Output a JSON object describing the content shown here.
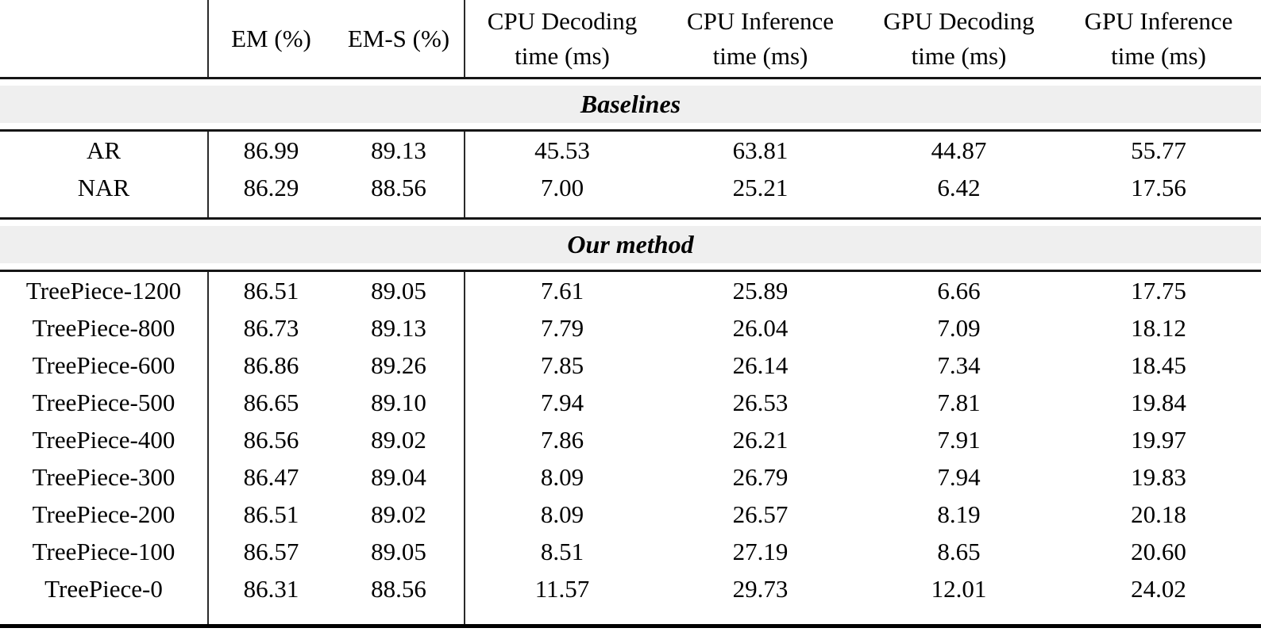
{
  "table": {
    "columns": [
      {
        "line1": "",
        "line2": ""
      },
      {
        "line1": "EM (%)",
        "line2": ""
      },
      {
        "line1": "EM-S (%)",
        "line2": ""
      },
      {
        "line1": "CPU Decoding",
        "line2": "time (ms)"
      },
      {
        "line1": "CPU Inference",
        "line2": "time (ms)"
      },
      {
        "line1": "GPU Decoding",
        "line2": "time (ms)"
      },
      {
        "line1": "GPU Inference",
        "line2": "time (ms)"
      }
    ],
    "sections": [
      {
        "title": "Baselines",
        "rows": [
          {
            "label": "AR",
            "label_bold": false,
            "cells": [
              {
                "v": "86.99",
                "b": true
              },
              {
                "v": "89.13",
                "b": false
              },
              {
                "v": "45.53",
                "b": false
              },
              {
                "v": "63.81",
                "b": false
              },
              {
                "v": "44.87",
                "b": false
              },
              {
                "v": "55.77",
                "b": false
              }
            ]
          },
          {
            "label": "NAR",
            "label_bold": false,
            "cells": [
              {
                "v": "86.29",
                "b": false
              },
              {
                "v": "88.56",
                "b": false
              },
              {
                "v": "7.00",
                "b": true
              },
              {
                "v": "25.21",
                "b": true
              },
              {
                "v": "6.42",
                "b": true
              },
              {
                "v": "17.56",
                "b": true
              }
            ]
          }
        ]
      },
      {
        "title": "Our method",
        "rows": [
          {
            "label": "TreePiece-1200",
            "label_bold": false,
            "cells": [
              {
                "v": "86.51",
                "b": false
              },
              {
                "v": "89.05",
                "b": false
              },
              {
                "v": "7.61",
                "b": false
              },
              {
                "v": "25.89",
                "b": false
              },
              {
                "v": "6.66",
                "b": false
              },
              {
                "v": "17.75",
                "b": false
              }
            ]
          },
          {
            "label": "TreePiece-800",
            "label_bold": false,
            "cells": [
              {
                "v": "86.73",
                "b": false
              },
              {
                "v": "89.13",
                "b": false
              },
              {
                "v": "7.79",
                "b": false
              },
              {
                "v": "26.04",
                "b": false
              },
              {
                "v": "7.09",
                "b": false
              },
              {
                "v": "18.12",
                "b": false
              }
            ]
          },
          {
            "label": "TreePiece-600",
            "label_bold": true,
            "cells": [
              {
                "v": "86.86",
                "b": false
              },
              {
                "v": "89.26",
                "b": true
              },
              {
                "v": "7.85",
                "b": false
              },
              {
                "v": "26.14",
                "b": false
              },
              {
                "v": "7.34",
                "b": false
              },
              {
                "v": "18.45",
                "b": false
              }
            ]
          },
          {
            "label": "TreePiece-500",
            "label_bold": false,
            "cells": [
              {
                "v": "86.65",
                "b": false
              },
              {
                "v": "89.10",
                "b": false
              },
              {
                "v": "7.94",
                "b": false
              },
              {
                "v": "26.53",
                "b": false
              },
              {
                "v": "7.81",
                "b": false
              },
              {
                "v": "19.84",
                "b": false
              }
            ]
          },
          {
            "label": "TreePiece-400",
            "label_bold": false,
            "cells": [
              {
                "v": "86.56",
                "b": false
              },
              {
                "v": "89.02",
                "b": false
              },
              {
                "v": "7.86",
                "b": false
              },
              {
                "v": "26.21",
                "b": false
              },
              {
                "v": "7.91",
                "b": false
              },
              {
                "v": "19.97",
                "b": false
              }
            ]
          },
          {
            "label": "TreePiece-300",
            "label_bold": false,
            "cells": [
              {
                "v": "86.47",
                "b": false
              },
              {
                "v": "89.04",
                "b": false
              },
              {
                "v": "8.09",
                "b": false
              },
              {
                "v": "26.79",
                "b": false
              },
              {
                "v": "7.94",
                "b": false
              },
              {
                "v": "19.83",
                "b": false
              }
            ]
          },
          {
            "label": "TreePiece-200",
            "label_bold": false,
            "cells": [
              {
                "v": "86.51",
                "b": false
              },
              {
                "v": "89.02",
                "b": false
              },
              {
                "v": "8.09",
                "b": false
              },
              {
                "v": "26.57",
                "b": false
              },
              {
                "v": "8.19",
                "b": false
              },
              {
                "v": "20.18",
                "b": false
              }
            ]
          },
          {
            "label": "TreePiece-100",
            "label_bold": false,
            "cells": [
              {
                "v": "86.57",
                "b": false
              },
              {
                "v": "89.05",
                "b": false
              },
              {
                "v": "8.51",
                "b": false
              },
              {
                "v": "27.19",
                "b": false
              },
              {
                "v": "8.65",
                "b": false
              },
              {
                "v": "20.60",
                "b": false
              }
            ]
          },
          {
            "label": "TreePiece-0",
            "label_bold": false,
            "cells": [
              {
                "v": "86.31",
                "b": false
              },
              {
                "v": "88.56",
                "b": false
              },
              {
                "v": "11.57",
                "b": false
              },
              {
                "v": "29.73",
                "b": false
              },
              {
                "v": "12.01",
                "b": false
              },
              {
                "v": "24.02",
                "b": false
              }
            ]
          }
        ]
      }
    ]
  }
}
